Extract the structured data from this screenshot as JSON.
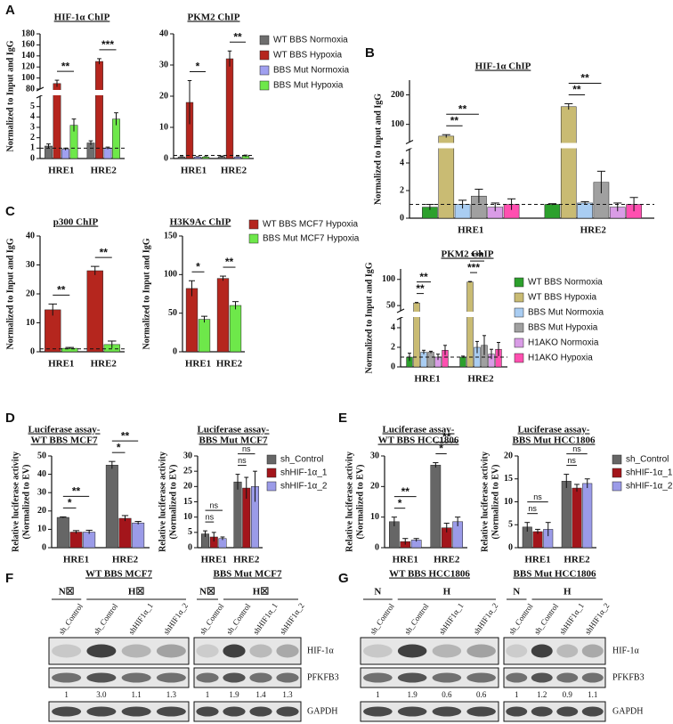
{
  "panel_labels": [
    "A",
    "B",
    "C",
    "D",
    "E",
    "F",
    "G"
  ],
  "chart_data": [
    {
      "type": "bar",
      "title": "HIF-1α ChIP",
      "y_label": "Normalized to Input and IgG",
      "categories": [
        "HRE1",
        "HRE2"
      ],
      "ylim": [
        0,
        180
      ],
      "axis_break": [
        6,
        80
      ],
      "yticks": [
        0,
        1,
        2,
        3,
        4,
        5,
        80,
        100,
        120,
        140,
        160,
        180
      ],
      "reference_line": 1,
      "series": [
        {
          "color": "#6e6e6e",
          "values": [
            1.2,
            1.5
          ],
          "errors": [
            0.2,
            0.2
          ]
        },
        {
          "color": "#b5261e",
          "values": [
            90,
            130
          ],
          "errors": [
            6,
            5
          ]
        },
        {
          "color": "#a0a0f0",
          "values": [
            0.9,
            1.0
          ],
          "errors": [
            0.1,
            0.1
          ]
        },
        {
          "color": "#6ee84a",
          "values": [
            3.2,
            3.8
          ],
          "errors": [
            0.6,
            0.6
          ]
        }
      ],
      "annotations": [
        {
          "text": "**",
          "category": 0,
          "pair": [
            1,
            3
          ]
        },
        {
          "text": "***",
          "category": 1,
          "pair": [
            1,
            3
          ]
        }
      ]
    },
    {
      "type": "bar",
      "title": "PKM2 ChIP",
      "categories": [
        "HRE1",
        "HRE2"
      ],
      "ylim": [
        0,
        40
      ],
      "yticks": [
        0,
        10,
        20,
        30,
        40
      ],
      "reference_line": 1,
      "legend": "right",
      "series": [
        {
          "name": "WT BBS Normoxia",
          "color": "#6e6e6e",
          "values": [
            0.5,
            0.6
          ],
          "errors": [
            0.1,
            0.2
          ]
        },
        {
          "name": "WT BBS Hypoxia",
          "color": "#b5261e",
          "values": [
            18,
            32
          ],
          "errors": [
            7,
            2.5
          ]
        },
        {
          "name": "BBS Mut Normoxia",
          "color": "#a0a0f0",
          "values": [
            0.5,
            0.5
          ],
          "errors": [
            0.1,
            0.1
          ]
        },
        {
          "name": "BBS Mut Hypoxia",
          "color": "#6ee84a",
          "values": [
            0.5,
            0.8
          ],
          "errors": [
            0.1,
            0.3
          ]
        }
      ],
      "annotations": [
        {
          "text": "*",
          "category": 0,
          "pair": [
            1,
            3
          ]
        },
        {
          "text": "**",
          "category": 1,
          "pair": [
            1,
            3
          ]
        }
      ]
    },
    {
      "type": "bar",
      "title": "HIF-1α ChIP",
      "y_label": "Normalized to Input and IgG",
      "categories": [
        "HRE1",
        "HRE2"
      ],
      "ylim": [
        0,
        250
      ],
      "axis_break": [
        5,
        40
      ],
      "yticks": [
        0,
        2,
        4,
        100,
        200
      ],
      "reference_line": 1,
      "series": [
        {
          "color": "#2ca02c",
          "values": [
            0.8,
            1.0
          ],
          "errors": [
            0.2,
            0.05
          ]
        },
        {
          "color": "#c9bb73",
          "values": [
            60,
            160
          ],
          "errors": [
            5,
            10
          ]
        },
        {
          "color": "#a9cdf2",
          "values": [
            1.0,
            1.1
          ],
          "errors": [
            0.3,
            0.1
          ]
        },
        {
          "color": "#a0a0a0",
          "values": [
            1.6,
            2.6
          ],
          "errors": [
            0.5,
            0.8
          ]
        },
        {
          "color": "#d99ce6",
          "values": [
            0.8,
            0.8
          ],
          "errors": [
            0.3,
            0.3
          ]
        },
        {
          "color": "#ff4fb0",
          "values": [
            1.0,
            1.0
          ],
          "errors": [
            0.4,
            0.5
          ]
        }
      ],
      "annotations": [
        {
          "text": "**",
          "category": 0,
          "pair": [
            1,
            2
          ]
        },
        {
          "text": "**",
          "category": 0,
          "pair": [
            1,
            3
          ]
        },
        {
          "text": "**",
          "category": 1,
          "pair": [
            1,
            2
          ]
        },
        {
          "text": "**",
          "category": 1,
          "pair": [
            1,
            3
          ]
        }
      ]
    },
    {
      "type": "bar",
      "title": "p300 ChIP",
      "y_label": "Normalized to Input and IgG",
      "categories": [
        "HRE1",
        "HRE2"
      ],
      "ylim": [
        0,
        40
      ],
      "yticks": [
        0,
        10,
        20,
        30,
        40
      ],
      "reference_line": 1,
      "series": [
        {
          "color": "#b5261e",
          "values": [
            14.5,
            28
          ],
          "errors": [
            2,
            1.5
          ]
        },
        {
          "color": "#6ee84a",
          "values": [
            1.2,
            2.5
          ],
          "errors": [
            0.3,
            1.2
          ]
        }
      ],
      "annotations": [
        {
          "text": "**",
          "category": 0,
          "pair": [
            0,
            1
          ]
        },
        {
          "text": "**",
          "category": 1,
          "pair": [
            0,
            1
          ]
        }
      ]
    },
    {
      "type": "bar",
      "title": "H3K9Ac ChIP",
      "y_label": "Normalized to Input and IgG",
      "categories": [
        "HRE1",
        "HRE2"
      ],
      "ylim": [
        0,
        150
      ],
      "yticks": [
        0,
        50,
        100,
        150
      ],
      "legend": "top",
      "series": [
        {
          "name": "WT BBS MCF7 Hypoxia",
          "color": "#b5261e",
          "values": [
            82,
            95
          ],
          "errors": [
            10,
            3
          ]
        },
        {
          "name": "BBS Mut MCF7 Hypoxia",
          "color": "#6ee84a",
          "values": [
            42,
            60
          ],
          "errors": [
            4,
            5
          ]
        }
      ],
      "annotations": [
        {
          "text": "*",
          "category": 0,
          "pair": [
            0,
            1
          ]
        },
        {
          "text": "**",
          "category": 1,
          "pair": [
            0,
            1
          ]
        }
      ]
    },
    {
      "type": "bar",
      "title": "PKM2 ChIP",
      "y_label": "Normalized to Input and IgG",
      "categories": [
        "HRE1",
        "HRE2"
      ],
      "ylim": [
        0,
        120
      ],
      "axis_break": [
        5,
        40
      ],
      "yticks": [
        0,
        2,
        4,
        50,
        100
      ],
      "reference_line": 1,
      "legend": "right",
      "series": [
        {
          "name": "WT BBS Normoxia",
          "color": "#2ca02c",
          "values": [
            1.0,
            1.0
          ],
          "errors": [
            0.4,
            0.1
          ]
        },
        {
          "name": "WT BBS Hypoxia",
          "color": "#c9bb73",
          "values": [
            55,
            95
          ],
          "errors": [
            1,
            1
          ]
        },
        {
          "name": "BBS Mut Normoxia",
          "color": "#a9cdf2",
          "values": [
            1.5,
            2.0
          ],
          "errors": [
            0.2,
            0.6
          ]
        },
        {
          "name": "BBS Mut Hypoxia",
          "color": "#a0a0a0",
          "values": [
            1.5,
            2.2
          ],
          "errors": [
            0.1,
            1.0
          ]
        },
        {
          "name": "H1AKO Normoxia",
          "color": "#d99ce6",
          "values": [
            1.0,
            1.3
          ],
          "errors": [
            0.3,
            0.5
          ]
        },
        {
          "name": "H1AKO Hypoxia",
          "color": "#ff4fb0",
          "values": [
            1.7,
            1.8
          ],
          "errors": [
            0.5,
            0.7
          ]
        }
      ],
      "annotations": [
        {
          "text": "**",
          "category": 0,
          "pair": [
            1,
            2
          ]
        },
        {
          "text": "**",
          "category": 0,
          "pair": [
            1,
            3
          ]
        },
        {
          "text": "***",
          "category": 1,
          "pair": [
            1,
            2
          ]
        },
        {
          "text": "***",
          "category": 1,
          "pair": [
            1,
            3
          ]
        }
      ]
    },
    {
      "type": "bar",
      "title": [
        "Luciferase assay-",
        "WT BBS MCF7"
      ],
      "y_label": [
        "Relative luciferase activity",
        "(Normalized to EV)"
      ],
      "categories": [
        "HRE1",
        "HRE2"
      ],
      "ylim": [
        0,
        50
      ],
      "yticks": [
        0,
        10,
        20,
        30,
        40,
        50
      ],
      "series": [
        {
          "color": "#666666",
          "values": [
            16.5,
            45
          ],
          "errors": [
            0.3,
            2
          ]
        },
        {
          "color": "#a3151b",
          "values": [
            8.5,
            16
          ],
          "errors": [
            0.8,
            1.5
          ]
        },
        {
          "color": "#9b9be8",
          "values": [
            8.5,
            13.5
          ],
          "errors": [
            1,
            0.8
          ]
        }
      ],
      "annotations": [
        {
          "text": "*",
          "category": 0,
          "pair": [
            0,
            1
          ]
        },
        {
          "text": "**",
          "category": 0,
          "pair": [
            0,
            2
          ]
        },
        {
          "text": "*",
          "category": 1,
          "pair": [
            0,
            1
          ]
        },
        {
          "text": "**",
          "category": 1,
          "pair": [
            0,
            2
          ]
        }
      ]
    },
    {
      "type": "bar",
      "title": [
        "Luciferase assay-",
        "BBS Mut MCF7"
      ],
      "y_label": [
        "Relative luciferase activity",
        "(Normalized to EV)"
      ],
      "categories": [
        "HRE1",
        "HRE2"
      ],
      "ylim": [
        0,
        30
      ],
      "yticks": [
        0,
        5,
        10,
        15,
        20,
        25,
        30
      ],
      "legend": "right",
      "series": [
        {
          "name": "sh_Control",
          "color": "#666666",
          "values": [
            4.5,
            21.5
          ],
          "errors": [
            1,
            2.5
          ]
        },
        {
          "name": "shHIF-1α_1",
          "color": "#a3151b",
          "values": [
            3.5,
            19.5
          ],
          "errors": [
            1.5,
            3.5
          ]
        },
        {
          "name": "shHIF-1α_2",
          "color": "#9b9be8",
          "values": [
            3.0,
            20
          ],
          "errors": [
            0.5,
            5
          ]
        }
      ],
      "annotations": [
        {
          "text": "ns",
          "category": 0,
          "pair": [
            0,
            1
          ]
        },
        {
          "text": "ns",
          "category": 0,
          "pair": [
            0,
            2
          ]
        },
        {
          "text": "ns",
          "category": 1,
          "pair": [
            0,
            1
          ]
        },
        {
          "text": "ns",
          "category": 1,
          "pair": [
            0,
            2
          ]
        }
      ]
    },
    {
      "type": "bar",
      "title": [
        "Luciferase assay-",
        "WT BBS HCC1806"
      ],
      "y_label": [
        "Relative luciferase activity",
        "(Normalized to EV)"
      ],
      "categories": [
        "HRE1",
        "HRE2"
      ],
      "ylim": [
        0,
        30
      ],
      "yticks": [
        0,
        10,
        20,
        30
      ],
      "series": [
        {
          "color": "#666666",
          "values": [
            8.5,
            27
          ],
          "errors": [
            1.5,
            0.8
          ]
        },
        {
          "color": "#a3151b",
          "values": [
            2,
            6.5
          ],
          "errors": [
            1,
            1.5
          ]
        },
        {
          "color": "#9b9be8",
          "values": [
            2.5,
            8.5
          ],
          "errors": [
            0.5,
            1.5
          ]
        }
      ],
      "annotations": [
        {
          "text": "*",
          "category": 0,
          "pair": [
            0,
            1
          ]
        },
        {
          "text": "**",
          "category": 0,
          "pair": [
            0,
            2
          ]
        },
        {
          "text": "*",
          "category": 1,
          "pair": [
            0,
            1
          ]
        },
        {
          "text": "**",
          "category": 1,
          "pair": [
            0,
            2
          ]
        }
      ]
    },
    {
      "type": "bar",
      "title": [
        "Luciferase assay-",
        "BBS Mut HCC1806"
      ],
      "y_label": [
        "Relative luciferase activity",
        "(Normalized to EV)"
      ],
      "categories": [
        "HRE1",
        "HRE2"
      ],
      "ylim": [
        0,
        20
      ],
      "yticks": [
        0,
        5,
        10,
        15,
        20
      ],
      "legend": "right",
      "series": [
        {
          "name": "sh_Control",
          "color": "#666666",
          "values": [
            4.5,
            14.5
          ],
          "errors": [
            1,
            1.5
          ]
        },
        {
          "name": "shHIF-1α_1",
          "color": "#a3151b",
          "values": [
            3.5,
            13
          ],
          "errors": [
            0.5,
            0.8
          ]
        },
        {
          "name": "shHIF-1α_2",
          "color": "#9b9be8",
          "values": [
            4.0,
            14
          ],
          "errors": [
            1.5,
            1
          ]
        }
      ],
      "annotations": [
        {
          "text": "ns",
          "category": 0,
          "pair": [
            0,
            1
          ]
        },
        {
          "text": "ns",
          "category": 0,
          "pair": [
            0,
            2
          ]
        },
        {
          "text": "ns",
          "category": 1,
          "pair": [
            0,
            1
          ]
        },
        {
          "text": "ns",
          "category": 1,
          "pair": [
            0,
            2
          ]
        }
      ]
    }
  ],
  "blot_panels": [
    {
      "proteins": [
        "HIF-1α",
        "PFKFB3",
        "GAPDH"
      ],
      "blots": [
        {
          "title": "WT BBS MCF7",
          "groups": [
            "N☒",
            "H☒"
          ],
          "lanes": [
            "sh_Control",
            "sh_Control",
            "shHIF1α_1",
            "shHIF1α_2"
          ],
          "quantification": [
            "1",
            "3.0",
            "1.1",
            "1.3"
          ]
        },
        {
          "title": "BBS Mut MCF7",
          "groups": [
            "N☒",
            "H☒"
          ],
          "lanes": [
            "sh_Control",
            "sh_Control",
            "shHIF1α_1",
            "shHIF1α_2"
          ],
          "quantification": [
            "1",
            "1.9",
            "1.4",
            "1.3"
          ]
        }
      ]
    },
    {
      "proteins": [
        "HIF-1α",
        "PFKFB3",
        "GAPDH"
      ],
      "blots": [
        {
          "title": "WT BBS HCC1806",
          "groups": [
            "N",
            "H"
          ],
          "lanes": [
            "sh_Control",
            "sh_Control",
            "shHIF1α_1",
            "shHIF1α_2"
          ],
          "quantification": [
            "1",
            "1.9",
            "0.6",
            "0.6"
          ]
        },
        {
          "title": "BBS Mut HCC1806",
          "groups": [
            "N",
            "H"
          ],
          "lanes": [
            "sh_Control",
            "sh_Control",
            "shHIF1α_1",
            "shHIF1α_2"
          ],
          "quantification": [
            "1",
            "1.2",
            "0.9",
            "1.1"
          ]
        }
      ]
    }
  ]
}
